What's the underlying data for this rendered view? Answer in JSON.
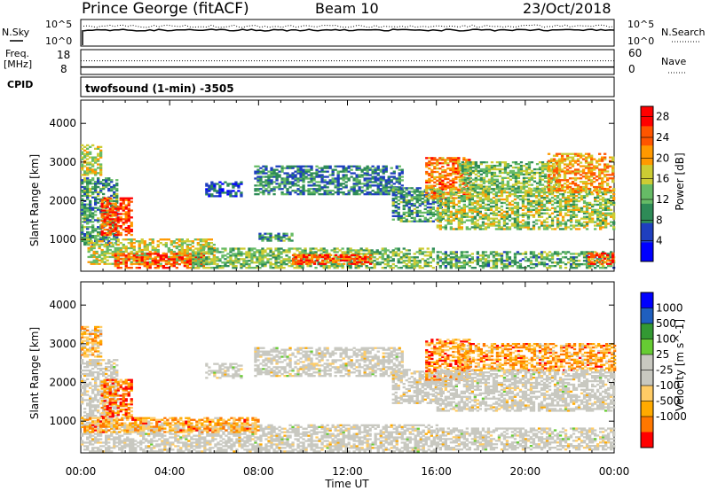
{
  "header": {
    "station": "Prince George (fitACF)",
    "beam": "Beam 10",
    "date": "23/Oct/2018"
  },
  "noise_panel": {
    "left_label": "N.Sky",
    "left_ticks": [
      "10^5",
      "10^0"
    ],
    "right_ticks": [
      "10^5",
      "10^0"
    ],
    "right_label": "N.Search",
    "sky_level": 0.6,
    "search_level": 0.75
  },
  "freq_panel": {
    "label_line1": "Freq.",
    "label_line2": "[MHz]",
    "left_ticks": [
      "18",
      "8"
    ],
    "right_ticks": [
      "60",
      "0"
    ],
    "right_label": "Nave",
    "freq_level": 0.3,
    "nave_level": 0.55
  },
  "cpid": {
    "label": "CPID",
    "text": "twofsound (1-min) -3505"
  },
  "colors": {
    "power": [
      "#0000ff",
      "#1f3fbf",
      "#2e8b57",
      "#66bb66",
      "#cccc33",
      "#ff9900",
      "#ff5500",
      "#ff0000"
    ],
    "velocity": [
      "#ff0000",
      "#ff7700",
      "#ffaa00",
      "#ffcc66",
      "#c8c8c0",
      "#c8c8c0",
      "#66cc33",
      "#339933",
      "#1f5fbf",
      "#0000ff"
    ],
    "ground_scatter": "#c8c8c0"
  },
  "chart_data": [
    {
      "type": "heatmap",
      "title": "Power",
      "xlabel": "Time UT",
      "ylabel": "Slant Range [km]",
      "xlim": [
        0,
        24
      ],
      "ylim": [
        180,
        4600
      ],
      "x_ticks": [
        "00:00",
        "04:00",
        "08:00",
        "12:00",
        "16:00",
        "20:00",
        "00:00"
      ],
      "y_ticks": [
        1000,
        2000,
        3000,
        4000
      ],
      "colorbar_label": "Power [dB]",
      "colorbar_ticks": [
        4,
        8,
        12,
        16,
        20,
        24,
        28
      ],
      "colorbar_range": [
        0,
        30
      ],
      "scatter_regions": [
        {
          "t0": 0.0,
          "t1": 0.9,
          "r0": 2650,
          "r1": 3450,
          "level": 0.55
        },
        {
          "t0": 0.0,
          "t1": 1.6,
          "r0": 850,
          "r1": 2600,
          "level": 0.35
        },
        {
          "t0": 0.9,
          "t1": 2.3,
          "r0": 1100,
          "r1": 2050,
          "level": 0.85
        },
        {
          "t0": 0.3,
          "t1": 6.0,
          "r0": 350,
          "r1": 1000,
          "level": 0.55
        },
        {
          "t0": 1.5,
          "t1": 5.5,
          "r0": 250,
          "r1": 650,
          "level": 0.85
        },
        {
          "t0": 5.0,
          "t1": 15.8,
          "r0": 250,
          "r1": 750,
          "level": 0.45
        },
        {
          "t0": 9.5,
          "t1": 13.0,
          "r0": 350,
          "r1": 600,
          "level": 0.85
        },
        {
          "t0": 5.6,
          "t1": 7.2,
          "r0": 2100,
          "r1": 2500,
          "level": 0.2
        },
        {
          "t0": 7.8,
          "t1": 14.5,
          "r0": 2150,
          "r1": 2900,
          "level": 0.3
        },
        {
          "t0": 14.0,
          "t1": 16.2,
          "r0": 1450,
          "r1": 2350,
          "level": 0.35
        },
        {
          "t0": 15.5,
          "t1": 17.5,
          "r0": 2050,
          "r1": 3100,
          "level": 0.75
        },
        {
          "t0": 16.0,
          "t1": 24.0,
          "r0": 1250,
          "r1": 2300,
          "level": 0.5
        },
        {
          "t0": 17.0,
          "t1": 21.5,
          "r0": 2300,
          "r1": 3000,
          "level": 0.45
        },
        {
          "t0": 21.0,
          "t1": 24.0,
          "r0": 2200,
          "r1": 3200,
          "level": 0.7
        },
        {
          "t0": 16.0,
          "t1": 24.0,
          "r0": 250,
          "r1": 700,
          "level": 0.4
        },
        {
          "t0": 22.8,
          "t1": 24.0,
          "r0": 350,
          "r1": 650,
          "level": 0.85
        },
        {
          "t0": 8.0,
          "t1": 9.5,
          "r0": 950,
          "r1": 1150,
          "level": 0.35
        }
      ]
    },
    {
      "type": "heatmap",
      "title": "Velocity",
      "xlabel": "Time UT",
      "ylabel": "Slant Range [km]",
      "xlim": [
        0,
        24
      ],
      "ylim": [
        180,
        4600
      ],
      "x_ticks": [
        "00:00",
        "04:00",
        "08:00",
        "12:00",
        "16:00",
        "20:00",
        "00:00"
      ],
      "y_ticks": [
        1000,
        2000,
        3000,
        4000
      ],
      "colorbar_label": "Velocity [m s^-1]",
      "colorbar_ticks": [
        "1000",
        "500",
        "100",
        "25",
        "-25",
        "-100",
        "-500",
        "-1000"
      ],
      "scatter_regions": [
        {
          "t0": 0.0,
          "t1": 0.9,
          "r0": 2650,
          "r1": 3450,
          "level": 0.3
        },
        {
          "t0": 0.0,
          "t1": 1.6,
          "r0": 850,
          "r1": 2600,
          "level": 0.45
        },
        {
          "t0": 0.9,
          "t1": 2.3,
          "r0": 1100,
          "r1": 2050,
          "level": 0.15
        },
        {
          "t0": 0.0,
          "t1": 16.0,
          "r0": 200,
          "r1": 900,
          "level": 0.45
        },
        {
          "t0": 0.0,
          "t1": 8.0,
          "r0": 700,
          "r1": 1100,
          "level": 0.25
        },
        {
          "t0": 5.6,
          "t1": 7.2,
          "r0": 2100,
          "r1": 2500,
          "level": 0.45
        },
        {
          "t0": 7.8,
          "t1": 14.5,
          "r0": 2150,
          "r1": 2900,
          "level": 0.45
        },
        {
          "t0": 14.0,
          "t1": 16.2,
          "r0": 1450,
          "r1": 2350,
          "level": 0.45
        },
        {
          "t0": 15.5,
          "t1": 17.5,
          "r0": 2050,
          "r1": 3100,
          "level": 0.2
        },
        {
          "t0": 17.0,
          "t1": 24.0,
          "r0": 2300,
          "r1": 3000,
          "level": 0.25
        },
        {
          "t0": 16.0,
          "t1": 24.0,
          "r0": 1250,
          "r1": 2300,
          "level": 0.45
        },
        {
          "t0": 16.0,
          "t1": 24.0,
          "r0": 250,
          "r1": 800,
          "level": 0.45
        }
      ]
    }
  ]
}
